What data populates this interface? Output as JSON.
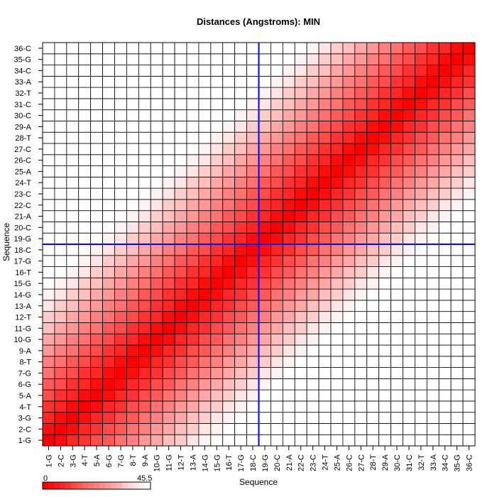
{
  "chart_data": {
    "type": "heatmap",
    "title": "Distances (Angstroms):  MIN",
    "xlabel": "Sequence",
    "ylabel": "Sequence",
    "labels": [
      "1-G",
      "2-C",
      "3-G",
      "4-T",
      "5-A",
      "6-G",
      "7-G",
      "8-T",
      "9-A",
      "10-G",
      "11-G",
      "12-T",
      "13-A",
      "14-G",
      "15-G",
      "16-T",
      "17-G",
      "18-C",
      "19-G",
      "20-C",
      "21-A",
      "22-C",
      "23-C",
      "24-T",
      "25-A",
      "26-C",
      "27-C",
      "28-T",
      "29-A",
      "30-C",
      "31-C",
      "32-T",
      "33-A",
      "34-C",
      "35-G",
      "36-C"
    ],
    "value_model": "min distance approximately 3.4 * |i - j| Angstroms (B-DNA rise), estimated from color",
    "rise_per_step": 3.4,
    "colorbar": {
      "min": 0,
      "max": 45.5,
      "min_label": "0",
      "max_label": "45.5",
      "low_color": "#ff0000",
      "high_color": "#ffffff"
    },
    "crosshair": {
      "row": "18-C",
      "col": "18-C",
      "color": "#0000ff"
    },
    "grid": true,
    "cell_border_color": "#000000"
  }
}
